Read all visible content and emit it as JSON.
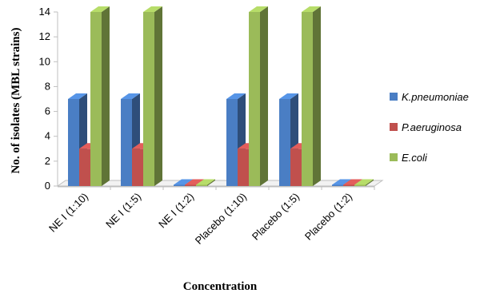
{
  "chart_data": {
    "type": "bar",
    "categories": [
      "NE I (1:10)",
      "NE I (1:5)",
      "NE I (1:2)",
      "Placebo (1:10)",
      "Placebo (1:5)",
      "Placebo (1:2)"
    ],
    "series": [
      {
        "name": "K.pneumoniae",
        "color": "#4a7ec4",
        "values": [
          7,
          7,
          0,
          7,
          7,
          0
        ]
      },
      {
        "name": "P.aeruginosa",
        "color": "#c0504d",
        "values": [
          3,
          3,
          0,
          3,
          3,
          0
        ]
      },
      {
        "name": "E.coli",
        "color": "#9bbb59",
        "values": [
          14,
          14,
          0,
          14,
          14,
          0
        ]
      }
    ],
    "ylim": [
      0,
      14
    ],
    "yticks": [
      0,
      2,
      4,
      6,
      8,
      10,
      12,
      14
    ],
    "ylabel": "No. of isolates (MBL  strains)",
    "xlabel": "Concentration",
    "legend_position": "right",
    "style": "3d-clustered-column"
  }
}
